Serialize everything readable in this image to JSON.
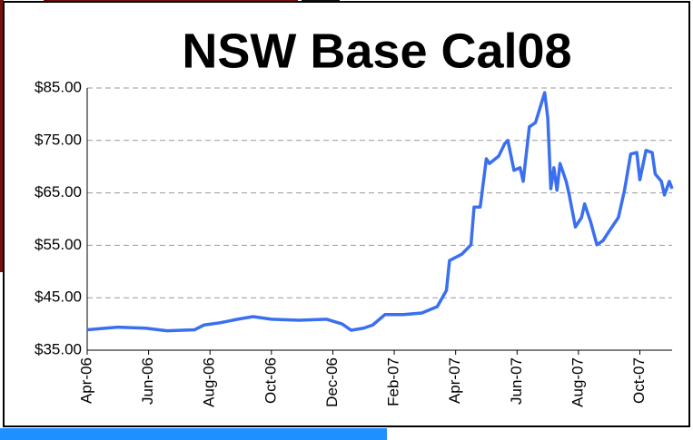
{
  "chart_data": {
    "type": "line",
    "title": "NSW Base Cal08",
    "xlim": [
      0,
      19.05
    ],
    "xticks": [
      {
        "value": 0,
        "label": "Apr-06"
      },
      {
        "value": 2,
        "label": "Jun-06"
      },
      {
        "value": 4,
        "label": "Aug-06"
      },
      {
        "value": 6,
        "label": "Oct-06"
      },
      {
        "value": 8,
        "label": "Dec-06"
      },
      {
        "value": 10,
        "label": "Feb-07"
      },
      {
        "value": 12,
        "label": "Apr-07"
      },
      {
        "value": 14,
        "label": "Jun-07"
      },
      {
        "value": 16,
        "label": "Aug-07"
      },
      {
        "value": 18,
        "label": "Oct-07"
      }
    ],
    "ylim": [
      35,
      85
    ],
    "yticks": [
      {
        "value": 35,
        "label": "$35.00"
      },
      {
        "value": 45,
        "label": "$45.00"
      },
      {
        "value": 55,
        "label": "$55.00"
      },
      {
        "value": 65,
        "label": "$65.00"
      },
      {
        "value": 75,
        "label": "$75.00"
      },
      {
        "value": 85,
        "label": "$85.00"
      }
    ],
    "grid": true,
    "x": [
      0,
      1.0,
      1.9,
      2.6,
      3.5,
      3.8,
      4.3,
      4.9,
      5.4,
      6.0,
      6.9,
      7.8,
      8.3,
      8.6,
      9.0,
      9.3,
      9.7,
      10.3,
      10.9,
      11.4,
      11.7,
      11.8,
      12.2,
      12.5,
      12.6,
      12.8,
      13.0,
      13.1,
      13.4,
      13.6,
      13.7,
      13.9,
      14.1,
      14.2,
      14.4,
      14.6,
      14.9,
      15.0,
      15.1,
      15.2,
      15.3,
      15.4,
      15.6,
      15.7,
      15.9,
      16.1,
      16.2,
      16.4,
      16.6,
      16.8,
      17.0,
      17.3,
      17.5,
      17.7,
      17.9,
      18.0,
      18.2,
      18.4,
      18.5,
      18.7,
      18.8,
      18.96,
      19.05
    ],
    "series": [
      {
        "color": "#3a6ff0",
        "values": [
          38.9,
          39.4,
          39.2,
          38.7,
          38.9,
          39.8,
          40.2,
          40.9,
          41.4,
          40.9,
          40.7,
          40.9,
          40.0,
          38.8,
          39.2,
          39.8,
          41.8,
          41.8,
          42.1,
          43.3,
          46.4,
          52.1,
          53.3,
          55.1,
          62.3,
          62.3,
          71.5,
          70.6,
          72.0,
          74.4,
          75.0,
          69.3,
          69.8,
          67.2,
          77.6,
          78.4,
          84.1,
          79.3,
          65.8,
          69.8,
          65.5,
          70.6,
          67.2,
          64.6,
          58.5,
          60.3,
          62.9,
          59.4,
          55.1,
          55.9,
          57.7,
          60.3,
          65.5,
          72.4,
          72.7,
          67.5,
          73.1,
          72.7,
          68.6,
          67.2,
          64.6,
          67.2,
          65.8
        ]
      }
    ]
  }
}
